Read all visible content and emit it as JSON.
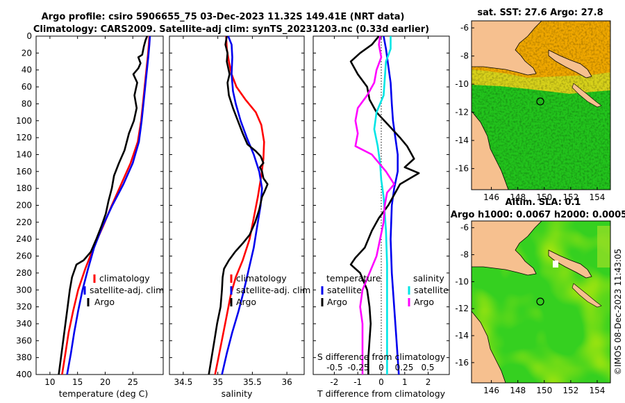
{
  "title_line1": "Argo profile: csiro 5906655_75 03-Dec-2023 11.32S 149.41E (NRT data)",
  "title_line2": "Climatology: CARS2009. Satellite-adj clim: synTS_20231203.nc (0.33d earlier)",
  "watermark": "©IMOS 08-Dec-2023 11:43:05",
  "colors": {
    "red": "#ff0000",
    "blue": "#0000ee",
    "black": "#000000",
    "cyan": "#00e5e5",
    "magenta": "#ff00ff",
    "land": "#f6c08f"
  },
  "chart_data": [
    {
      "id": "temperature",
      "type": "line",
      "xlabel": "temperature (deg C)",
      "xlim": [
        7.5,
        30.5
      ],
      "xticks": [
        10,
        15,
        20,
        25
      ],
      "ylim": [
        400,
        0
      ],
      "yticks": [
        0,
        20,
        40,
        60,
        80,
        100,
        120,
        140,
        160,
        180,
        200,
        220,
        240,
        260,
        280,
        300,
        320,
        340,
        360,
        380,
        400
      ],
      "legend": [
        "climatology",
        "satellite-adj. clim",
        "Argo"
      ],
      "series": [
        {
          "name": "climatology",
          "color": "red",
          "points": [
            [
              28,
              0
            ],
            [
              27.9,
              10
            ],
            [
              27.7,
              25
            ],
            [
              27.3,
              50
            ],
            [
              26.9,
              75
            ],
            [
              26.5,
              100
            ],
            [
              25.9,
              125
            ],
            [
              24.6,
              150
            ],
            [
              22.9,
              175
            ],
            [
              21.2,
              200
            ],
            [
              19.6,
              225
            ],
            [
              17.9,
              250
            ],
            [
              16.4,
              275
            ],
            [
              15.1,
              300
            ],
            [
              14.2,
              325
            ],
            [
              13.4,
              350
            ],
            [
              12.8,
              375
            ],
            [
              12.2,
              400
            ]
          ]
        },
        {
          "name": "satellite-adj. clim",
          "color": "blue",
          "points": [
            [
              28.1,
              0
            ],
            [
              28.0,
              10
            ],
            [
              27.8,
              25
            ],
            [
              27.4,
              50
            ],
            [
              27.0,
              75
            ],
            [
              26.6,
              100
            ],
            [
              26.1,
              125
            ],
            [
              25.0,
              150
            ],
            [
              23.3,
              175
            ],
            [
              21.3,
              200
            ],
            [
              19.5,
              225
            ],
            [
              18.0,
              250
            ],
            [
              16.9,
              275
            ],
            [
              15.9,
              300
            ],
            [
              15.1,
              325
            ],
            [
              14.4,
              350
            ],
            [
              13.8,
              375
            ],
            [
              13.1,
              400
            ]
          ]
        },
        {
          "name": "Argo",
          "color": "black",
          "points": [
            [
              27.6,
              0
            ],
            [
              27.3,
              5
            ],
            [
              27.0,
              12
            ],
            [
              26.7,
              22
            ],
            [
              26.0,
              25
            ],
            [
              26.4,
              32
            ],
            [
              26.0,
              38
            ],
            [
              25.1,
              45
            ],
            [
              25.8,
              55
            ],
            [
              25.3,
              70
            ],
            [
              25.7,
              85
            ],
            [
              25.2,
              100
            ],
            [
              24.3,
              115
            ],
            [
              23.5,
              135
            ],
            [
              22.5,
              150
            ],
            [
              21.6,
              165
            ],
            [
              21.2,
              180
            ],
            [
              20.6,
              195
            ],
            [
              20.1,
              210
            ],
            [
              19.3,
              225
            ],
            [
              18.4,
              240
            ],
            [
              17.4,
              255
            ],
            [
              16.1,
              265
            ],
            [
              14.8,
              270
            ],
            [
              14.0,
              285
            ],
            [
              13.6,
              300
            ],
            [
              13.2,
              320
            ],
            [
              12.8,
              340
            ],
            [
              12.4,
              360
            ],
            [
              12.0,
              380
            ],
            [
              11.6,
              400
            ]
          ]
        }
      ]
    },
    {
      "id": "salinity",
      "type": "line",
      "xlabel": "salinity",
      "xlim": [
        34.3,
        36.25
      ],
      "xticks": [
        34.5,
        35,
        35.5,
        36
      ],
      "ylim": [
        400,
        0
      ],
      "legend": [
        "climatology",
        "satellite-adj. clim",
        "Argo"
      ],
      "series": [
        {
          "name": "climatology",
          "color": "red",
          "points": [
            [
              35.12,
              0
            ],
            [
              35.13,
              15
            ],
            [
              35.16,
              30
            ],
            [
              35.2,
              45
            ],
            [
              35.27,
              60
            ],
            [
              35.4,
              75
            ],
            [
              35.55,
              90
            ],
            [
              35.63,
              105
            ],
            [
              35.67,
              125
            ],
            [
              35.66,
              145
            ],
            [
              35.63,
              165
            ],
            [
              35.58,
              190
            ],
            [
              35.52,
              215
            ],
            [
              35.46,
              240
            ],
            [
              35.36,
              265
            ],
            [
              35.26,
              285
            ],
            [
              35.19,
              305
            ],
            [
              35.13,
              330
            ],
            [
              35.07,
              355
            ],
            [
              35.01,
              380
            ],
            [
              34.96,
              400
            ]
          ]
        },
        {
          "name": "satellite-adj. clim",
          "color": "blue",
          "points": [
            [
              35.15,
              0
            ],
            [
              35.2,
              10
            ],
            [
              35.21,
              25
            ],
            [
              35.2,
              45
            ],
            [
              35.22,
              65
            ],
            [
              35.26,
              80
            ],
            [
              35.33,
              100
            ],
            [
              35.42,
              120
            ],
            [
              35.52,
              140
            ],
            [
              35.6,
              160
            ],
            [
              35.64,
              180
            ],
            [
              35.62,
              200
            ],
            [
              35.57,
              225
            ],
            [
              35.52,
              250
            ],
            [
              35.45,
              275
            ],
            [
              35.38,
              300
            ],
            [
              35.3,
              325
            ],
            [
              35.21,
              350
            ],
            [
              35.13,
              375
            ],
            [
              35.06,
              400
            ]
          ]
        },
        {
          "name": "Argo",
          "color": "black",
          "points": [
            [
              35.13,
              0
            ],
            [
              35.11,
              10
            ],
            [
              35.14,
              20
            ],
            [
              35.13,
              30
            ],
            [
              35.17,
              45
            ],
            [
              35.14,
              55
            ],
            [
              35.16,
              70
            ],
            [
              35.22,
              85
            ],
            [
              35.29,
              100
            ],
            [
              35.36,
              115
            ],
            [
              35.43,
              128
            ],
            [
              35.55,
              136
            ],
            [
              35.62,
              142
            ],
            [
              35.66,
              150
            ],
            [
              35.61,
              155
            ],
            [
              35.64,
              160
            ],
            [
              35.66,
              168
            ],
            [
              35.72,
              175
            ],
            [
              35.68,
              183
            ],
            [
              35.64,
              190
            ],
            [
              35.6,
              205
            ],
            [
              35.54,
              220
            ],
            [
              35.46,
              235
            ],
            [
              35.36,
              245
            ],
            [
              35.25,
              255
            ],
            [
              35.16,
              265
            ],
            [
              35.09,
              275
            ],
            [
              35.07,
              285
            ],
            [
              35.06,
              300
            ],
            [
              35.04,
              320
            ],
            [
              34.99,
              340
            ],
            [
              34.95,
              360
            ],
            [
              34.91,
              380
            ],
            [
              34.87,
              400
            ]
          ]
        }
      ]
    },
    {
      "id": "difference",
      "type": "line",
      "xlabel": "T difference from climatology",
      "xlabel_top": "S difference from climatology",
      "xlim": [
        -2.9,
        2.9
      ],
      "xticks": [
        -2,
        -1,
        0,
        1,
        2
      ],
      "sticks_labels": [
        "-0.5",
        "-0.25",
        "0",
        "0.25",
        "0.5"
      ],
      "ylim": [
        400,
        0
      ],
      "legend_temperature_title": "temperature",
      "legend_salinity_title": "salinity",
      "legend": [
        "satellite",
        "Argo",
        "satellite",
        "Argo"
      ],
      "series": [
        {
          "name": "T satellite",
          "color": "blue",
          "points": [
            [
              0.1,
              0
            ],
            [
              0.2,
              15
            ],
            [
              0.3,
              35
            ],
            [
              0.4,
              55
            ],
            [
              0.45,
              80
            ],
            [
              0.5,
              100
            ],
            [
              0.6,
              120
            ],
            [
              0.7,
              140
            ],
            [
              0.7,
              160
            ],
            [
              0.55,
              180
            ],
            [
              0.45,
              200
            ],
            [
              0.4,
              240
            ],
            [
              0.45,
              280
            ],
            [
              0.55,
              320
            ],
            [
              0.65,
              360
            ],
            [
              0.75,
              400
            ]
          ]
        },
        {
          "name": "T Argo",
          "color": "black",
          "points": [
            [
              -0.1,
              0
            ],
            [
              -0.4,
              10
            ],
            [
              -0.9,
              20
            ],
            [
              -1.3,
              30
            ],
            [
              -1.0,
              45
            ],
            [
              -0.6,
              60
            ],
            [
              -0.5,
              75
            ],
            [
              -0.2,
              90
            ],
            [
              0.3,
              105
            ],
            [
              0.8,
              120
            ],
            [
              1.1,
              130
            ],
            [
              1.4,
              145
            ],
            [
              1.0,
              155
            ],
            [
              1.6,
              162
            ],
            [
              0.8,
              175
            ],
            [
              0.6,
              185
            ],
            [
              0.3,
              200
            ],
            [
              -0.1,
              215
            ],
            [
              -0.4,
              230
            ],
            [
              -0.7,
              250
            ],
            [
              -1.1,
              262
            ],
            [
              -1.3,
              270
            ],
            [
              -0.9,
              280
            ],
            [
              -0.6,
              300
            ],
            [
              -0.5,
              320
            ],
            [
              -0.45,
              340
            ],
            [
              -0.5,
              360
            ],
            [
              -0.55,
              380
            ],
            [
              -0.55,
              400
            ]
          ]
        },
        {
          "name": "S satellite",
          "color": "cyan",
          "points": [
            [
              0.4,
              0
            ],
            [
              0.4,
              15
            ],
            [
              0.2,
              30
            ],
            [
              0.15,
              50
            ],
            [
              0.1,
              70
            ],
            [
              -0.2,
              90
            ],
            [
              -0.3,
              110
            ],
            [
              -0.15,
              130
            ],
            [
              -0.05,
              150
            ],
            [
              0.0,
              170
            ],
            [
              0.1,
              190
            ],
            [
              0.2,
              230
            ],
            [
              0.25,
              270
            ],
            [
              0.25,
              320
            ],
            [
              0.25,
              360
            ],
            [
              0.25,
              400
            ]
          ]
        },
        {
          "name": "S Argo",
          "color": "magenta",
          "points": [
            [
              -0.05,
              0
            ],
            [
              -0.1,
              10
            ],
            [
              0.0,
              25
            ],
            [
              -0.2,
              40
            ],
            [
              -0.3,
              55
            ],
            [
              -0.6,
              70
            ],
            [
              -1.0,
              85
            ],
            [
              -1.1,
              100
            ],
            [
              -1.0,
              115
            ],
            [
              -1.1,
              130
            ],
            [
              -0.4,
              140
            ],
            [
              -0.1,
              150
            ],
            [
              0.2,
              160
            ],
            [
              0.55,
              175
            ],
            [
              0.25,
              185
            ],
            [
              0.15,
              200
            ],
            [
              0.1,
              220
            ],
            [
              -0.05,
              240
            ],
            [
              -0.2,
              260
            ],
            [
              -0.5,
              280
            ],
            [
              -0.8,
              300
            ],
            [
              -0.9,
              320
            ],
            [
              -0.8,
              340
            ],
            [
              -0.8,
              360
            ],
            [
              -0.8,
              380
            ],
            [
              -0.8,
              400
            ]
          ]
        }
      ]
    },
    {
      "id": "sst_map",
      "type": "heatmap",
      "title": "sat. SST: 27.6 Argo: 27.8",
      "xticks": [
        146,
        148,
        150,
        152,
        154
      ],
      "yticks": [
        -6,
        -8,
        -10,
        -12,
        -14,
        -16
      ],
      "xlim": [
        144.5,
        155
      ],
      "ylim": [
        -17.5,
        -5.5
      ],
      "float_position": [
        149.41,
        -11.32
      ]
    },
    {
      "id": "sla_map",
      "type": "heatmap",
      "title_line1": "Altim. SLA: 0.1",
      "title_line2": "Argo h1000: 0.0067 h2000: 0.0005",
      "xticks": [
        146,
        148,
        150,
        152,
        154
      ],
      "yticks": [
        -6,
        -8,
        -10,
        -12,
        -14,
        -16
      ],
      "xlim": [
        144.5,
        155
      ],
      "ylim": [
        -17.5,
        -5.5
      ],
      "float_position": [
        149.41,
        -11.32
      ]
    }
  ]
}
